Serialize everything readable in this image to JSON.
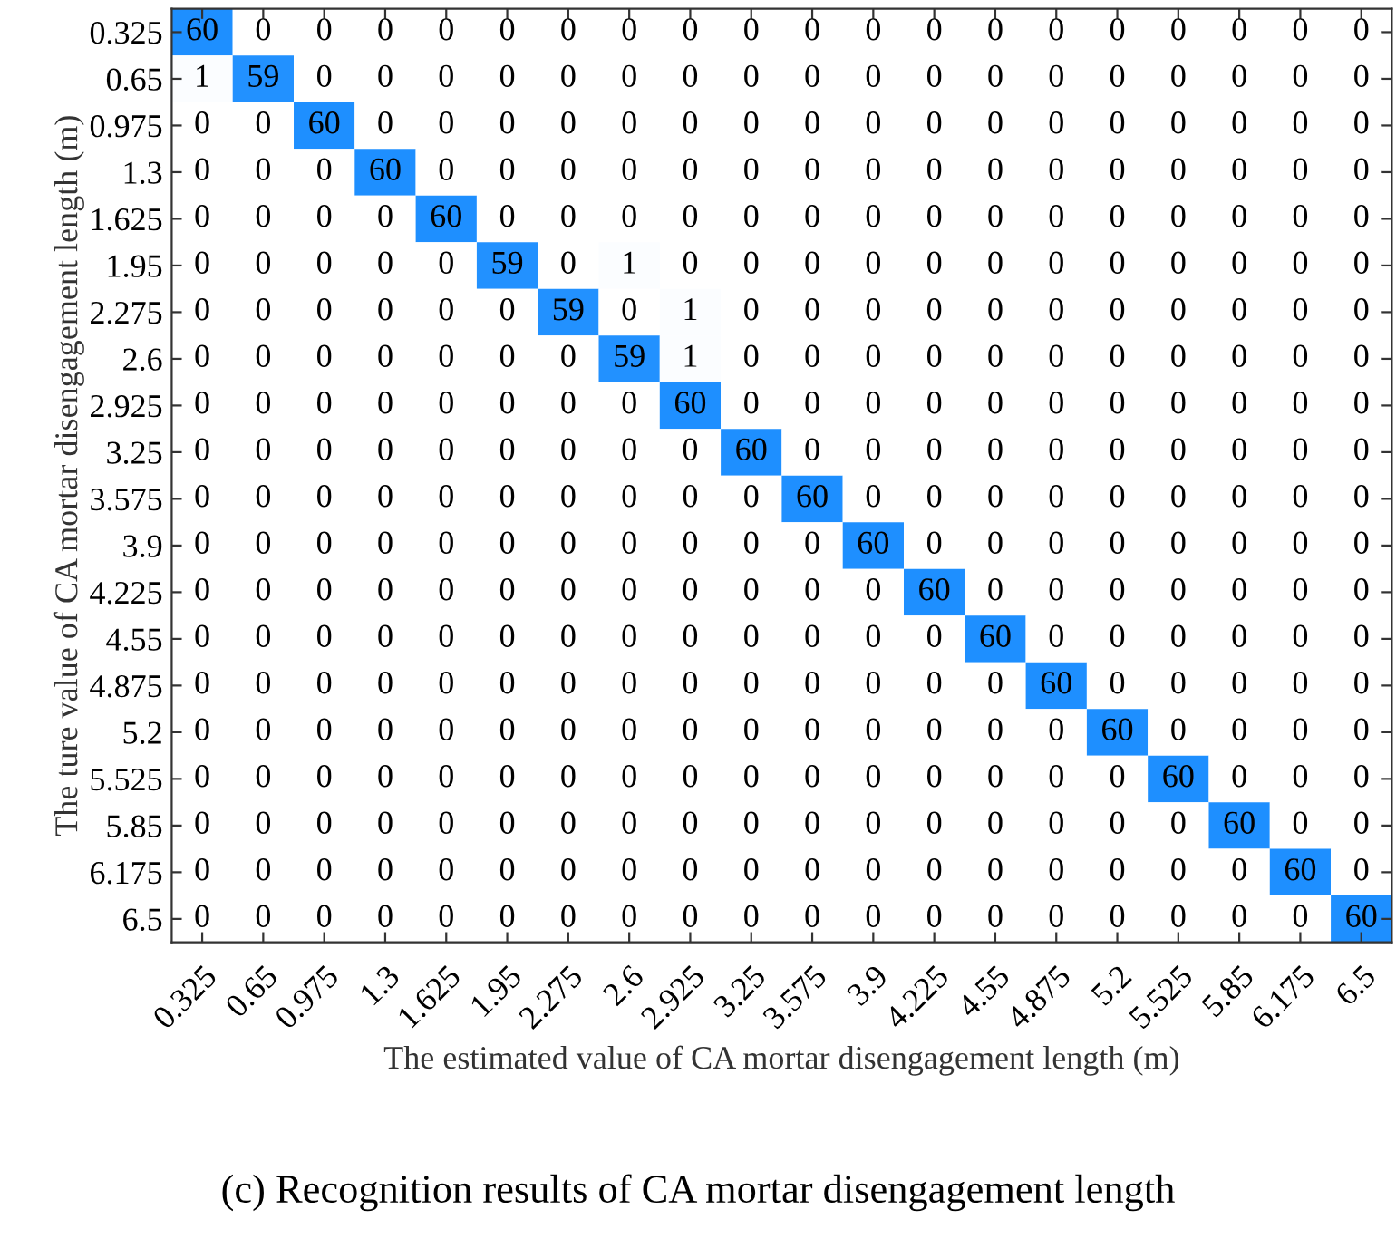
{
  "chart_data": {
    "type": "heatmap",
    "xlabel": "The estimated value of CA mortar disengagement length (m)",
    "ylabel": "The ture value of CA mortar disengagement length (m)",
    "annotations": [
      "(c) Recognition results of CA mortar disengagement length"
    ],
    "categories": [
      "0.325",
      "0.65",
      "0.975",
      "1.3",
      "1.625",
      "1.95",
      "2.275",
      "2.6",
      "2.925",
      "3.25",
      "3.575",
      "3.9",
      "4.225",
      "4.55",
      "4.875",
      "5.2",
      "5.525",
      "5.85",
      "6.175",
      "6.5"
    ],
    "y_categories": [
      "0.325",
      "0.65",
      "0.975",
      "1.3",
      "1.625",
      "1.95",
      "2.275",
      "2.6",
      "2.925",
      "3.25",
      "3.575",
      "3.9",
      "4.225",
      "4.55",
      "4.875",
      "5.2",
      "5.525",
      "5.85",
      "6.175",
      "6.5"
    ],
    "color": "#1e8fff",
    "data_labels": true,
    "cells": [
      [
        60,
        0,
        0,
        0,
        0,
        0,
        0,
        0,
        0,
        0,
        0,
        0,
        0,
        0,
        0,
        0,
        0,
        0,
        0,
        0
      ],
      [
        1,
        59,
        0,
        0,
        0,
        0,
        0,
        0,
        0,
        0,
        0,
        0,
        0,
        0,
        0,
        0,
        0,
        0,
        0,
        0
      ],
      [
        0,
        0,
        60,
        0,
        0,
        0,
        0,
        0,
        0,
        0,
        0,
        0,
        0,
        0,
        0,
        0,
        0,
        0,
        0,
        0
      ],
      [
        0,
        0,
        0,
        60,
        0,
        0,
        0,
        0,
        0,
        0,
        0,
        0,
        0,
        0,
        0,
        0,
        0,
        0,
        0,
        0
      ],
      [
        0,
        0,
        0,
        0,
        60,
        0,
        0,
        0,
        0,
        0,
        0,
        0,
        0,
        0,
        0,
        0,
        0,
        0,
        0,
        0
      ],
      [
        0,
        0,
        0,
        0,
        0,
        59,
        0,
        1,
        0,
        0,
        0,
        0,
        0,
        0,
        0,
        0,
        0,
        0,
        0,
        0
      ],
      [
        0,
        0,
        0,
        0,
        0,
        0,
        59,
        0,
        1,
        0,
        0,
        0,
        0,
        0,
        0,
        0,
        0,
        0,
        0,
        0
      ],
      [
        0,
        0,
        0,
        0,
        0,
        0,
        0,
        59,
        1,
        0,
        0,
        0,
        0,
        0,
        0,
        0,
        0,
        0,
        0,
        0
      ],
      [
        0,
        0,
        0,
        0,
        0,
        0,
        0,
        0,
        60,
        0,
        0,
        0,
        0,
        0,
        0,
        0,
        0,
        0,
        0,
        0
      ],
      [
        0,
        0,
        0,
        0,
        0,
        0,
        0,
        0,
        0,
        60,
        0,
        0,
        0,
        0,
        0,
        0,
        0,
        0,
        0,
        0
      ],
      [
        0,
        0,
        0,
        0,
        0,
        0,
        0,
        0,
        0,
        0,
        60,
        0,
        0,
        0,
        0,
        0,
        0,
        0,
        0,
        0
      ],
      [
        0,
        0,
        0,
        0,
        0,
        0,
        0,
        0,
        0,
        0,
        0,
        60,
        0,
        0,
        0,
        0,
        0,
        0,
        0,
        0
      ],
      [
        0,
        0,
        0,
        0,
        0,
        0,
        0,
        0,
        0,
        0,
        0,
        0,
        60,
        0,
        0,
        0,
        0,
        0,
        0,
        0
      ],
      [
        0,
        0,
        0,
        0,
        0,
        0,
        0,
        0,
        0,
        0,
        0,
        0,
        0,
        60,
        0,
        0,
        0,
        0,
        0,
        0
      ],
      [
        0,
        0,
        0,
        0,
        0,
        0,
        0,
        0,
        0,
        0,
        0,
        0,
        0,
        0,
        60,
        0,
        0,
        0,
        0,
        0
      ],
      [
        0,
        0,
        0,
        0,
        0,
        0,
        0,
        0,
        0,
        0,
        0,
        0,
        0,
        0,
        0,
        60,
        0,
        0,
        0,
        0
      ],
      [
        0,
        0,
        0,
        0,
        0,
        0,
        0,
        0,
        0,
        0,
        0,
        0,
        0,
        0,
        0,
        0,
        60,
        0,
        0,
        0
      ],
      [
        0,
        0,
        0,
        0,
        0,
        0,
        0,
        0,
        0,
        0,
        0,
        0,
        0,
        0,
        0,
        0,
        0,
        60,
        0,
        0
      ],
      [
        0,
        0,
        0,
        0,
        0,
        0,
        0,
        0,
        0,
        0,
        0,
        0,
        0,
        0,
        0,
        0,
        0,
        0,
        60,
        0
      ],
      [
        0,
        0,
        0,
        0,
        0,
        0,
        0,
        0,
        0,
        0,
        0,
        0,
        0,
        0,
        0,
        0,
        0,
        0,
        0,
        60
      ]
    ]
  }
}
